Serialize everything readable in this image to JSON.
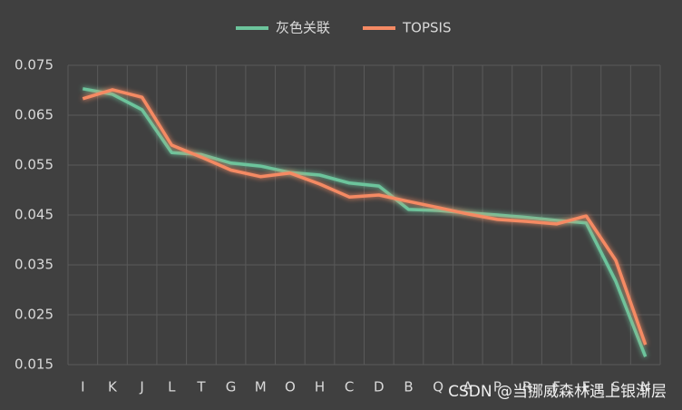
{
  "chart_data": {
    "type": "line",
    "categories": [
      "I",
      "K",
      "J",
      "L",
      "T",
      "G",
      "M",
      "O",
      "H",
      "C",
      "D",
      "B",
      "Q",
      "A",
      "P",
      "R",
      "F",
      "E",
      "S",
      "N"
    ],
    "series": [
      {
        "name": "灰色关联",
        "color": "#6cc49c",
        "values": [
          0.0703,
          0.0692,
          0.0661,
          0.0575,
          0.0571,
          0.0554,
          0.0548,
          0.0535,
          0.053,
          0.0514,
          0.0508,
          0.0461,
          0.0459,
          0.0454,
          0.045,
          0.0445,
          0.0439,
          0.0434,
          0.0317,
          0.0166
        ]
      },
      {
        "name": "TOPSIS",
        "color": "#f58a64",
        "values": [
          0.0683,
          0.0701,
          0.0686,
          0.059,
          0.0566,
          0.054,
          0.0527,
          0.0534,
          0.0512,
          0.0486,
          0.049,
          0.0477,
          0.0465,
          0.0452,
          0.0441,
          0.0437,
          0.0432,
          0.0448,
          0.0359,
          0.019
        ]
      }
    ],
    "ylim": [
      0.015,
      0.075
    ],
    "yticks": [
      0.015,
      0.025,
      0.035,
      0.045,
      0.055,
      0.065,
      0.075
    ],
    "grid": true,
    "legend": "top",
    "watermark": "CSDN @当挪威森林遇上银渐层"
  }
}
